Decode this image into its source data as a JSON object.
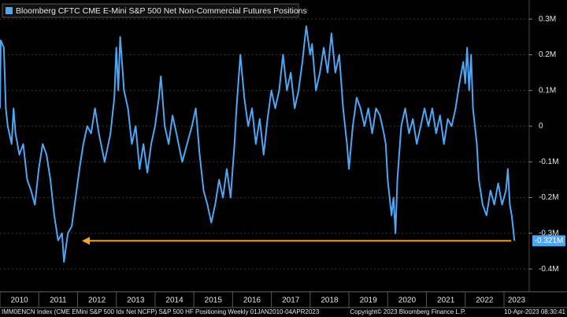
{
  "chart_data": {
    "type": "line",
    "title": "Bloomberg CFTC CME E-Mini S&P 500 Net Non-Commercial Futures Positions",
    "footer_left": "IMM0ENCN Index (CME EMini S&P 500 Idx Net NCFP) S&P 500 HF Positioning  Weekly 01JAN2010-04APR2023",
    "footer_center": "Copyright© 2023 Bloomberg Finance L.P.",
    "footer_right": "10-Apr-2023 08:30:41",
    "xlim": [
      2010,
      2023.65
    ],
    "xticks": [
      2010,
      2011,
      2012,
      2013,
      2014,
      2015,
      2016,
      2017,
      2018,
      2019,
      2020,
      2021,
      2022,
      2023
    ],
    "ylim": [
      -0.45,
      0.33
    ],
    "yticks": [
      {
        "value": 0.3,
        "label": "0.3M"
      },
      {
        "value": 0.2,
        "label": "0.2M"
      },
      {
        "value": 0.1,
        "label": "0.1M"
      },
      0,
      {
        "value": -0.1,
        "label": "-0.1M"
      },
      {
        "value": -0.2,
        "label": "-0.2M"
      },
      {
        "value": -0.3,
        "label": "-0.3M"
      },
      {
        "value": -0.4,
        "label": "-0.4M"
      }
    ],
    "grid": true,
    "last_value_label": "-0.321M",
    "series": [
      {
        "color": "#4ea6f5",
        "x": [
          2010.0,
          2010.02,
          2010.1,
          2010.15,
          2010.2,
          2010.3,
          2010.35,
          2010.4,
          2010.5,
          2010.6,
          2010.7,
          2010.8,
          2010.9,
          2011.0,
          2011.1,
          2011.2,
          2011.3,
          2011.4,
          2011.5,
          2011.6,
          2011.65,
          2011.75,
          2011.85,
          2011.95,
          2012.05,
          2012.15,
          2012.25,
          2012.35,
          2012.45,
          2012.55,
          2012.7,
          2012.85,
          2012.95,
          2013.0,
          2013.05,
          2013.1,
          2013.2,
          2013.3,
          2013.4,
          2013.5,
          2013.6,
          2013.7,
          2013.8,
          2013.9,
          2014.0,
          2014.1,
          2014.15,
          2014.25,
          2014.35,
          2014.45,
          2014.55,
          2014.7,
          2014.85,
          2014.95,
          2015.05,
          2015.15,
          2015.25,
          2015.35,
          2015.45,
          2015.55,
          2015.65,
          2015.75,
          2015.85,
          2015.95,
          2016.0,
          2016.05,
          2016.1,
          2016.2,
          2016.3,
          2016.4,
          2016.5,
          2016.6,
          2016.7,
          2016.8,
          2016.9,
          2017.0,
          2017.1,
          2017.2,
          2017.3,
          2017.4,
          2017.5,
          2017.6,
          2017.7,
          2017.8,
          2017.9,
          2018.0,
          2018.05,
          2018.15,
          2018.25,
          2018.35,
          2018.45,
          2018.55,
          2018.65,
          2018.75,
          2018.85,
          2018.95,
          2019.0,
          2019.1,
          2019.2,
          2019.3,
          2019.4,
          2019.5,
          2019.6,
          2019.7,
          2019.8,
          2019.9,
          2019.95,
          2020.0,
          2020.1,
          2020.15,
          2020.2,
          2020.25,
          2020.35,
          2020.45,
          2020.55,
          2020.65,
          2020.75,
          2020.85,
          2020.95,
          2021.05,
          2021.15,
          2021.25,
          2021.35,
          2021.45,
          2021.55,
          2021.65,
          2021.75,
          2021.85,
          2021.95,
          2022.0,
          2022.05,
          2022.1,
          2022.15,
          2022.2,
          2022.3,
          2022.35,
          2022.45,
          2022.55,
          2022.65,
          2022.75,
          2022.85,
          2022.95,
          2023.05,
          2023.1,
          2023.15,
          2023.2,
          2023.27
        ],
        "values": [
          0.05,
          0.24,
          0.22,
          0.05,
          0.0,
          -0.05,
          0.05,
          -0.02,
          -0.08,
          -0.05,
          -0.15,
          -0.18,
          -0.22,
          -0.12,
          -0.05,
          -0.08,
          -0.15,
          -0.25,
          -0.32,
          -0.3,
          -0.38,
          -0.3,
          -0.28,
          -0.2,
          -0.12,
          -0.05,
          0.0,
          -0.02,
          0.05,
          -0.02,
          -0.1,
          -0.02,
          0.08,
          0.22,
          0.1,
          0.25,
          0.1,
          0.05,
          -0.05,
          0.0,
          -0.12,
          -0.05,
          -0.13,
          -0.05,
          0.0,
          0.08,
          0.14,
          0.0,
          -0.05,
          0.03,
          -0.02,
          -0.1,
          -0.04,
          0.0,
          0.05,
          -0.08,
          -0.18,
          -0.22,
          -0.27,
          -0.22,
          -0.15,
          -0.2,
          -0.12,
          -0.2,
          -0.12,
          -0.05,
          0.05,
          0.2,
          0.08,
          0.0,
          0.05,
          -0.05,
          0.02,
          -0.08,
          0.02,
          0.1,
          0.05,
          0.1,
          0.2,
          0.1,
          0.15,
          0.05,
          0.1,
          0.18,
          0.28,
          0.2,
          0.23,
          0.1,
          0.15,
          0.22,
          0.15,
          0.26,
          0.15,
          0.2,
          0.05,
          -0.05,
          -0.12,
          0.0,
          0.08,
          0.05,
          0.0,
          0.05,
          -0.02,
          0.05,
          0.03,
          -0.02,
          -0.05,
          -0.15,
          -0.25,
          -0.2,
          -0.3,
          -0.15,
          0.0,
          0.05,
          -0.02,
          0.02,
          -0.05,
          0.0,
          0.05,
          0.0,
          0.05,
          -0.02,
          0.03,
          -0.05,
          0.02,
          0.0,
          0.05,
          0.12,
          0.18,
          0.12,
          0.22,
          0.1,
          0.2,
          0.05,
          -0.05,
          -0.15,
          -0.22,
          -0.25,
          -0.18,
          -0.22,
          -0.16,
          -0.22,
          -0.18,
          -0.12,
          -0.22,
          -0.25,
          -0.321
        ]
      }
    ]
  }
}
